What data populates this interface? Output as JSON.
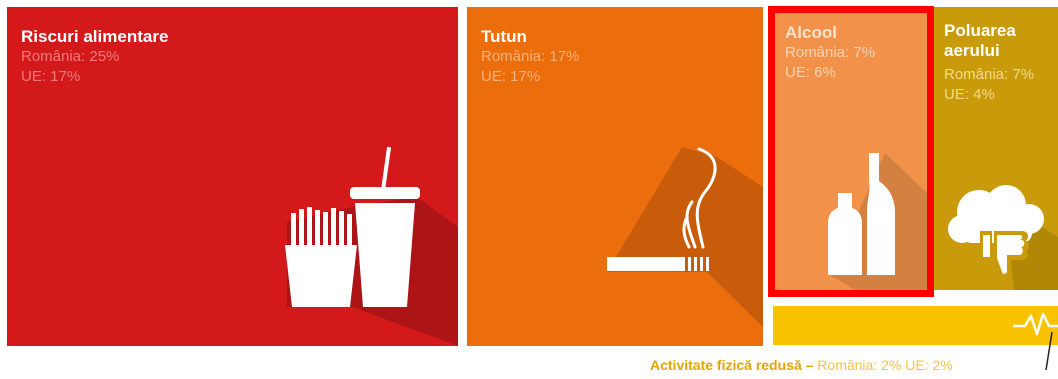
{
  "colors": {
    "alimentare": "#d4191b",
    "tutun": "#ec6d0c",
    "alcool": "#f2924a",
    "poluare": "#c99a09",
    "activitate": "#f8c200",
    "highlight": "#ff0000"
  },
  "chart_data": {
    "type": "treemap",
    "highlighted": "Alcool",
    "items": [
      {
        "label": "Riscuri alimentare",
        "romania_label": "România: 25%",
        "ue_label": "UE: 17%",
        "romania": 25,
        "ue": 17,
        "icon": "fast-food-icon"
      },
      {
        "label": "Tutun",
        "romania_label": "România: 17%",
        "ue_label": "UE: 17%",
        "romania": 17,
        "ue": 17,
        "icon": "cigarette-icon"
      },
      {
        "label": "Alcool",
        "romania_label": "România: 7%",
        "ue_label": "UE: 6%",
        "romania": 7,
        "ue": 6,
        "icon": "bottles-icon"
      },
      {
        "label_line1": "Poluarea",
        "label_line2": "aerului",
        "romania_label": "România: 7%",
        "ue_label": "UE: 4%",
        "romania": 7,
        "ue": 4,
        "icon": "cloud-thumbs-down-icon"
      },
      {
        "label": "Activitate fizică redusă –",
        "romania_label": "România: 2%",
        "ue_label": "UE: 2%",
        "romania": 2,
        "ue": 2,
        "icon": "heartbeat-icon"
      }
    ]
  }
}
